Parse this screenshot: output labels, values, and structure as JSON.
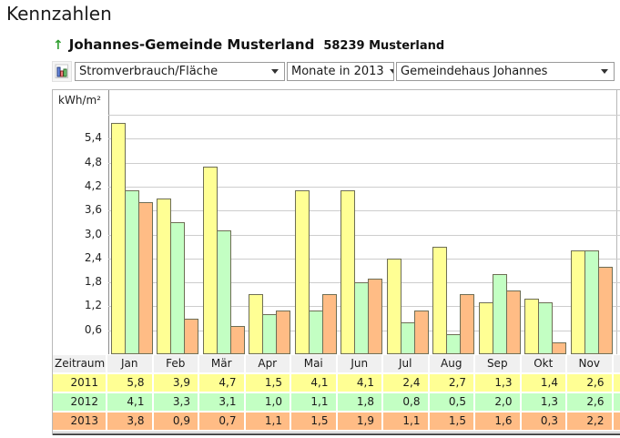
{
  "page_title": "Kennzahlen",
  "report": {
    "up_arrow": "↑",
    "title": "Johannes-Gemeinde Musterland",
    "location": "58239 Musterland"
  },
  "controls": {
    "chart_type_button": {
      "icon": "bar-chart-icon"
    },
    "metric_dropdown": {
      "value": "Stromverbrauch/Fläche"
    },
    "period_dropdown": {
      "value": "Monate in 2013"
    },
    "building_dropdown": {
      "value": "Gemeindehaus Johannes"
    }
  },
  "chart_data": {
    "type": "bar",
    "title": "",
    "ylabel": "kWh/m²",
    "xlabel": "",
    "ylim": [
      0,
      6
    ],
    "ytick_step": 0.6,
    "ytick_labels": [
      "0,6",
      "1,2",
      "1,8",
      "2,4",
      "3,0",
      "3,6",
      "4,2",
      "4,8",
      "5,4"
    ],
    "grid": true,
    "legend_position": "table-rows",
    "categories": [
      "Jan",
      "Feb",
      "Mär",
      "Apr",
      "Mai",
      "Jun",
      "Jul",
      "Aug",
      "Sep",
      "Okt",
      "Nov"
    ],
    "series": [
      {
        "name": "2011",
        "color": "#FFFF94",
        "values": [
          5.8,
          3.9,
          4.7,
          1.5,
          4.1,
          4.1,
          2.4,
          2.7,
          1.3,
          1.4,
          2.6
        ]
      },
      {
        "name": "2012",
        "color": "#C3FFC3",
        "values": [
          4.1,
          3.3,
          3.1,
          1.0,
          1.1,
          1.8,
          0.8,
          0.5,
          2.0,
          1.3,
          2.6
        ]
      },
      {
        "name": "2013",
        "color": "#FFBC85",
        "values": [
          3.8,
          0.9,
          0.7,
          1.1,
          1.5,
          1.9,
          1.1,
          1.5,
          1.6,
          0.3,
          2.2
        ]
      }
    ]
  },
  "table": {
    "header": [
      "Zeitraum",
      "Jan",
      "Feb",
      "Mär",
      "Apr",
      "Mai",
      "Jun",
      "Jul",
      "Aug",
      "Sep",
      "Okt",
      "Nov"
    ],
    "rows": [
      {
        "label": "2011",
        "color": "#FFFF94",
        "values": [
          "5,8",
          "3,9",
          "4,7",
          "1,5",
          "4,1",
          "4,1",
          "2,4",
          "2,7",
          "1,3",
          "1,4",
          "2,6"
        ]
      },
      {
        "label": "2012",
        "color": "#C3FFC3",
        "values": [
          "4,1",
          "3,3",
          "3,1",
          "1,0",
          "1,1",
          "1,8",
          "0,8",
          "0,5",
          "2,0",
          "1,3",
          "2,6"
        ]
      },
      {
        "label": "2013",
        "color": "#FFBC85",
        "values": [
          "3,8",
          "0,9",
          "0,7",
          "1,1",
          "1,5",
          "1,9",
          "1,1",
          "1,5",
          "1,6",
          "0,3",
          "2,2"
        ]
      }
    ]
  },
  "colors": {
    "accent_green_arrow": "#2F9E2F",
    "grid_line": "#CDCDCD",
    "header_cell_bg": "#F0F0F0",
    "bar_border": "#6E6E55"
  }
}
